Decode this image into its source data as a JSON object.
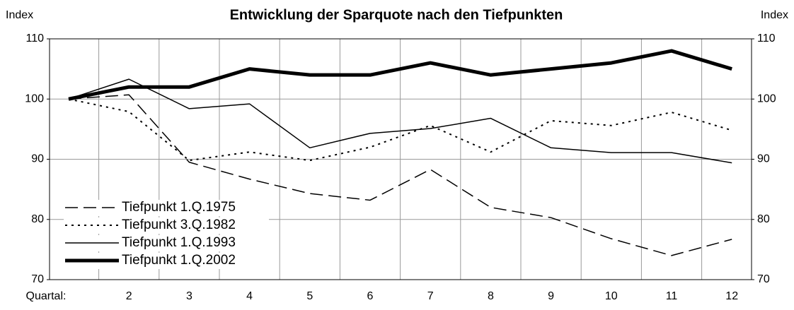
{
  "chart_data": {
    "type": "line",
    "title": "Entwicklung der Sparquote nach den Tiefpunkten",
    "y_label": "Index",
    "y2_label": "Index",
    "categories": [
      "Quartal:",
      "2",
      "3",
      "4",
      "5",
      "6",
      "7",
      "8",
      "9",
      "10",
      "11",
      "12"
    ],
    "series": [
      {
        "name": "Tiefpunkt 1.Q.1975",
        "color": "#000000",
        "dash": "dashed",
        "width": 1.5,
        "values": [
          100,
          100.7,
          89.5,
          86.7,
          84.3,
          83.2,
          88.3,
          82.0,
          80.3,
          76.8,
          74.0,
          76.7
        ]
      },
      {
        "name": "Tiefpunkt 3.Q.1982",
        "color": "#000000",
        "dash": "dotted",
        "width": 2,
        "values": [
          100,
          97.9,
          89.8,
          91.2,
          89.8,
          92.0,
          95.6,
          91.2,
          96.4,
          95.6,
          97.8,
          94.8
        ]
      },
      {
        "name": "Tiefpunkt 1.Q.1993",
        "color": "#000000",
        "dash": "solid",
        "width": 1.5,
        "values": [
          100,
          103.3,
          98.4,
          99.2,
          91.9,
          94.3,
          95.1,
          96.8,
          91.9,
          91.1,
          91.1,
          89.4
        ]
      },
      {
        "name": "Tiefpunkt 1.Q.2002",
        "color": "#000000",
        "dash": "solid",
        "width": 5,
        "values": [
          100,
          102,
          102,
          105,
          104,
          104,
          106,
          104,
          105,
          106,
          108,
          105
        ]
      }
    ],
    "ylim": [
      70,
      110
    ],
    "yticks": [
      70,
      80,
      90,
      100,
      110
    ],
    "y2lim": [
      70,
      110
    ],
    "y2ticks": [
      70,
      80,
      90,
      100,
      110
    ],
    "grid": true,
    "legend": "lower left"
  }
}
